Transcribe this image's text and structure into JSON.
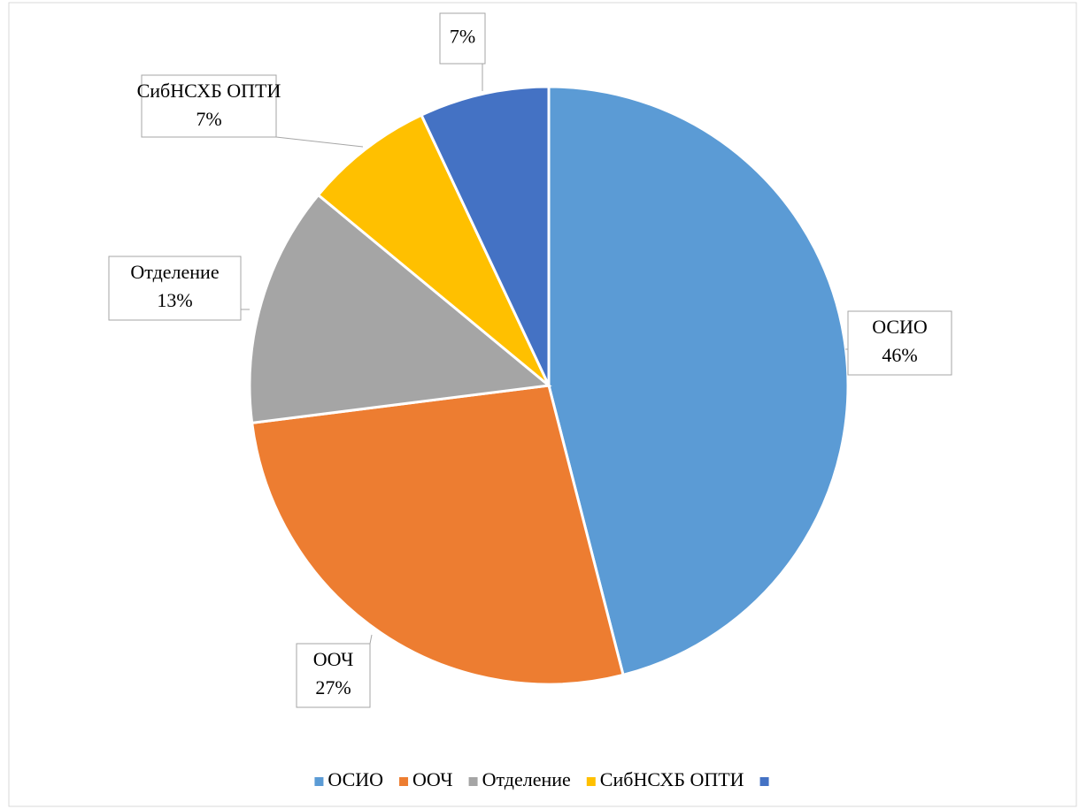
{
  "chart_data": {
    "type": "pie",
    "categories": [
      "ОСИО",
      "ООЧ",
      "Отделение",
      "СибНСХБ ОПТИ",
      null
    ],
    "values": [
      46,
      27,
      13,
      7,
      7
    ],
    "value_labels": [
      "46%",
      "27%",
      "13%",
      "7%",
      "7%"
    ],
    "colors": [
      "#5b9bd5",
      "#ed7d31",
      "#a5a5a5",
      "#ffc000",
      "#4472c4"
    ],
    "legend": "bottom"
  }
}
